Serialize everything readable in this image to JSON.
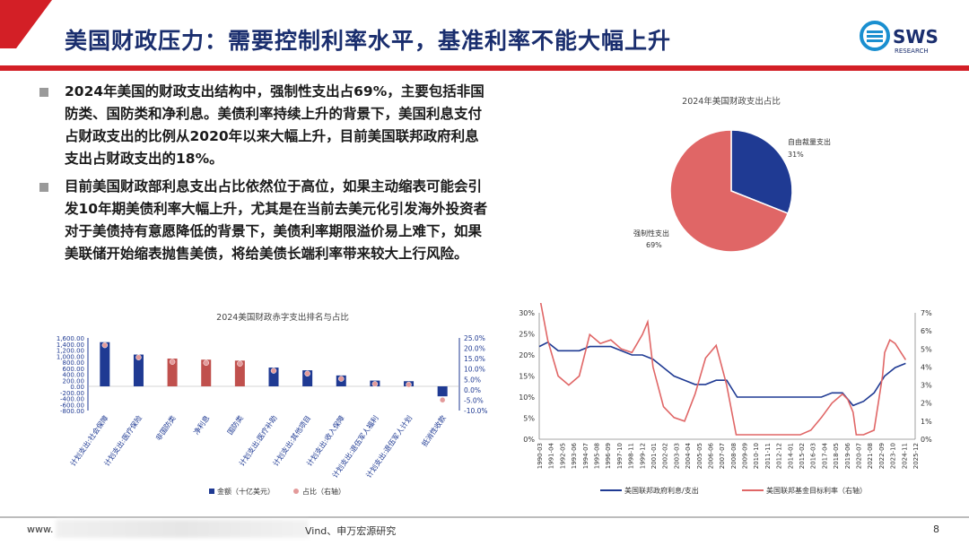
{
  "header": {
    "title": "美国财政压力：需要控制利率水平，基准利率不能大幅上升",
    "logo_text": "SWS",
    "logo_sub": "RESEARCH",
    "accent": "#d31f26",
    "title_color": "#1a2e6e"
  },
  "bullets": [
    "2024年美国的财政支出结构中，强制性支出占69%，主要包括非国防类、国防类和净利息。美债利率持续上升的背景下，美国利息支付占财政支出的比例从2020年以来大幅上升，目前美国联邦政府利息支出占财政支出的18%。",
    "目前美国财政部利息支出占比依然位于高位，如果主动缩表可能会引发10年期美债利率大幅上升，尤其是在当前去美元化引发海外投资者对于美债持有意愿降低的背景下，美债利率期限溢价易上难下，如果美联储开始缩表抛售美债，将给美债长端利率带来较大上行风险。"
  ],
  "footer": {
    "left": "www.",
    "source": "Vind、申万宏源研究",
    "page": "8"
  },
  "chart_data": [
    {
      "type": "pie",
      "title": "2024年美国财政支出占比",
      "slices": [
        {
          "label": "自由裁量支出",
          "pct_label": "31%",
          "value": 31,
          "color": "#1f3a93"
        },
        {
          "label": "强制性支出",
          "pct_label": "69%",
          "value": 69,
          "color": "#e06666"
        }
      ]
    },
    {
      "type": "bar",
      "title": "2024美国财政赤字支出排名与占比",
      "categories": [
        "计划支出:社会保障",
        "计划支出:医疗保险",
        "非国防类",
        "净利息",
        "国防类",
        "计划支出:医疗补助",
        "计划支出:其他项目",
        "计划支出:收入保障",
        "计划支出:退伍军人福利",
        "计划支出:退伍军人计划",
        "抵消性收款"
      ],
      "series": [
        {
          "name": "金额（十亿美元）",
          "values": [
            1460,
            1050,
            917,
            881,
            850,
            620,
            530,
            360,
            190,
            170,
            -330
          ],
          "color": "#1f3a93"
        },
        {
          "name": "占比（右轴）",
          "values": [
            21.5,
            15.6,
            13.5,
            13.0,
            12.6,
            9.2,
            7.8,
            5.3,
            2.8,
            2.5,
            -4.9
          ],
          "color": "#e39a9a"
        }
      ],
      "bar_colors": [
        "#1f3a93",
        "#1f3a93",
        "#c0504d",
        "#c0504d",
        "#c0504d",
        "#1f3a93",
        "#1f3a93",
        "#1f3a93",
        "#1f3a93",
        "#1f3a93",
        "#1f3a93"
      ],
      "y_ticks": [
        "1,600.00",
        "1,400.00",
        "1,200.00",
        "1,000.00",
        "800.00",
        "600.00",
        "400.00",
        "200.00",
        "0.00",
        "-200.00",
        "-400.00",
        "-600.00",
        "-800.00"
      ],
      "y2_ticks": [
        "25.0%",
        "20.0%",
        "15.0%",
        "10.0%",
        "5.0%",
        "0.0%",
        "-5.0%",
        "-10.0%"
      ],
      "ylim": [
        -800,
        1600
      ],
      "y2lim": [
        -10,
        25
      ]
    },
    {
      "type": "line",
      "x_ticks": [
        "1990-03",
        "1991-04",
        "1992-05",
        "1993-06",
        "1994-07",
        "1995-08",
        "1996-09",
        "1997-10",
        "1998-11",
        "1999-12",
        "2001-01",
        "2002-02",
        "2003-03",
        "2004-04",
        "2005-05",
        "2006-06",
        "2007-07",
        "2008-08",
        "2009-09",
        "2010-10",
        "2011-11",
        "2012-12",
        "2014-01",
        "2015-02",
        "2016-03",
        "2017-04",
        "2018-05",
        "2019-06",
        "2020-07",
        "2021-08",
        "2022-09",
        "2023-10",
        "2024-11",
        "2025-12"
      ],
      "y_ticks": [
        "30%",
        "25%",
        "20%",
        "15%",
        "10%",
        "5%",
        "0%"
      ],
      "y2_ticks": [
        "7%",
        "6%",
        "5%",
        "4%",
        "3%",
        "2%",
        "1%",
        "0%"
      ],
      "ylim": [
        0,
        30
      ],
      "y2lim": [
        0,
        7
      ],
      "series": [
        {
          "name": "美国联邦政府利息/支出",
          "color": "#1f3a93",
          "x": [
            1990.2,
            1991,
            1992,
            1993,
            1994,
            1995,
            1996,
            1997,
            1998,
            1999,
            2000,
            2001,
            2002,
            2003,
            2004,
            2005,
            2006,
            2007,
            2008,
            2009,
            2010,
            2011,
            2012,
            2013,
            2014,
            2015,
            2016,
            2017,
            2018,
            2019,
            2020,
            2021,
            2022,
            2023,
            2024,
            2025
          ],
          "values": [
            22,
            23,
            21,
            21,
            21,
            22,
            22,
            22,
            21,
            20,
            20,
            19,
            17,
            15,
            14,
            13,
            13,
            14,
            14,
            10,
            10,
            10,
            10,
            10,
            10,
            10,
            10,
            10,
            11,
            11,
            8,
            9,
            11,
            15,
            17,
            18
          ]
        },
        {
          "name": "美国联邦基金目标利率（右轴）",
          "color": "#e06666",
          "x": [
            1990.2,
            1991,
            1992,
            1993,
            1994,
            1995,
            1996,
            1997,
            1998,
            1999,
            2000,
            2000.5,
            2001,
            2002,
            2003,
            2004,
            2005,
            2006,
            2007,
            2008,
            2008.9,
            2009,
            2010,
            2011,
            2012,
            2013,
            2014,
            2015,
            2016,
            2017,
            2018,
            2019,
            2019.5,
            2020,
            2020.3,
            2021,
            2022,
            2022.8,
            2023,
            2023.5,
            2024,
            2025
          ],
          "values": [
            8,
            5.5,
            3.5,
            3,
            3.5,
            5.8,
            5.3,
            5.5,
            5,
            4.8,
            5.8,
            6.5,
            4,
            1.8,
            1.2,
            1,
            2.5,
            4.5,
            5.2,
            3,
            0.25,
            0.25,
            0.25,
            0.25,
            0.25,
            0.25,
            0.25,
            0.25,
            0.5,
            1.2,
            2,
            2.5,
            2.2,
            1.5,
            0.25,
            0.25,
            0.5,
            3.5,
            4.8,
            5.5,
            5.3,
            4.4
          ]
        }
      ]
    }
  ]
}
